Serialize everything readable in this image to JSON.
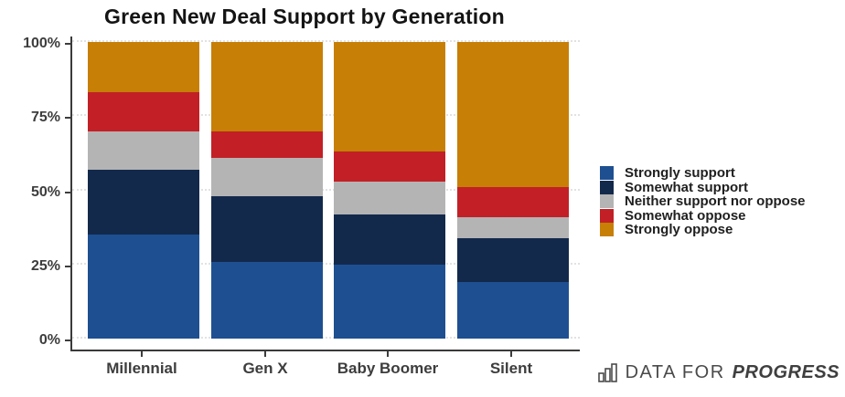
{
  "chart_data": {
    "type": "bar",
    "subtype": "stacked-percent",
    "title": "Green New Deal Support by Generation",
    "categories": [
      "Millennial",
      "Gen X",
      "Baby Boomer",
      "Silent"
    ],
    "series": [
      {
        "name": "Strongly support",
        "color": "#1E4F91",
        "values": [
          35,
          26,
          25,
          19
        ]
      },
      {
        "name": "Somewhat support",
        "color": "#13294B",
        "values": [
          22,
          22,
          17,
          15
        ]
      },
      {
        "name": "Neither support nor oppose",
        "color": "#B4B4B4",
        "values": [
          13,
          13,
          11,
          7
        ]
      },
      {
        "name": "Somewhat oppose",
        "color": "#C22026",
        "values": [
          13,
          9,
          10,
          10
        ]
      },
      {
        "name": "Strongly oppose",
        "color": "#C77F06",
        "values": [
          17,
          30,
          37,
          49
        ]
      }
    ],
    "y_tick_values": [
      0,
      25,
      50,
      75,
      100
    ],
    "y_tick_labels": [
      "0%",
      "25%",
      "50%",
      "75%",
      "100%"
    ],
    "ylim": [
      0,
      100
    ],
    "xlabel": "",
    "ylabel": "",
    "grid": "horizontal-dotted",
    "legend_position": "right",
    "stack_order": "first-series-at-bottom"
  },
  "branding": {
    "icon": "bar-chart-icon",
    "prefix": "DATA FOR",
    "name": "PROGRESS"
  }
}
